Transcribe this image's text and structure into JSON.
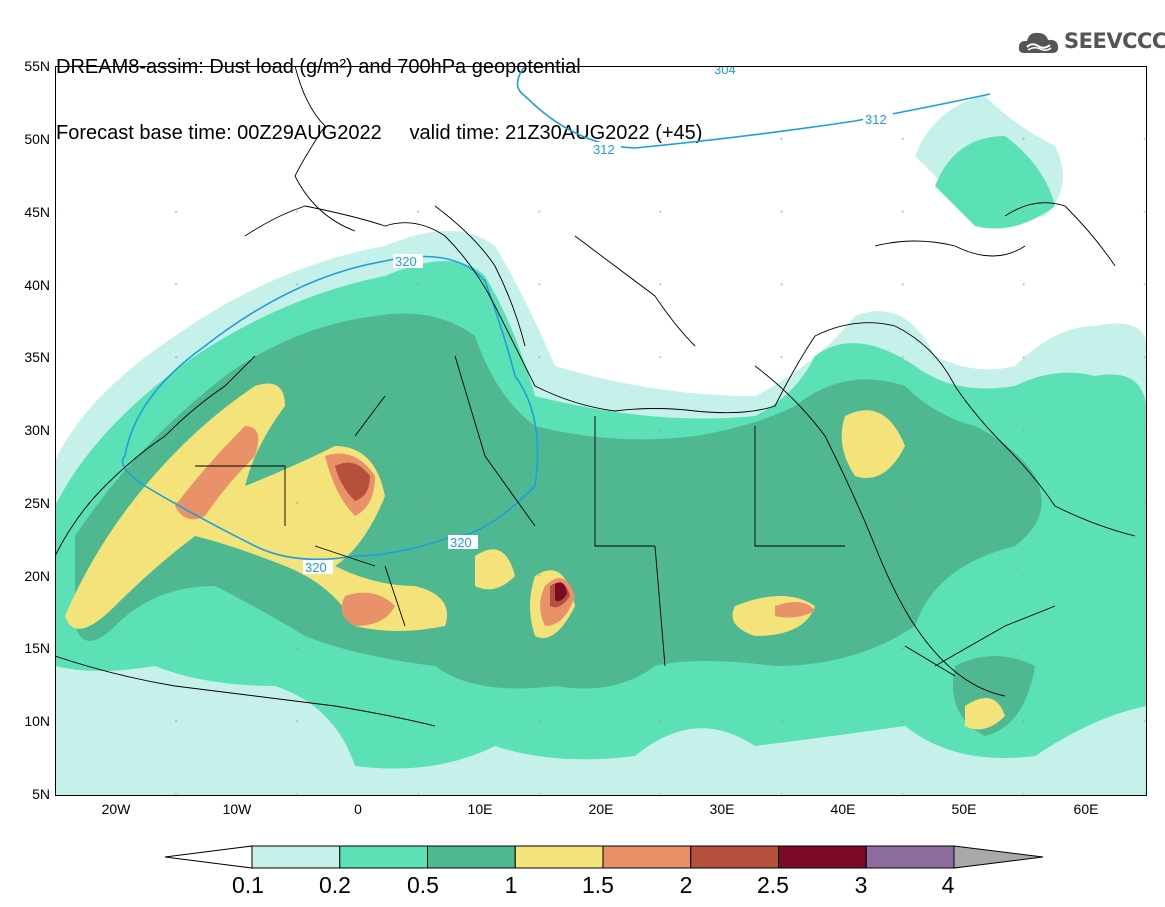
{
  "header": {
    "title_line1": "DREAM8-assim: Dust load (g/m²) and 700hPa geopotential",
    "title_line2": "Forecast base time: 00Z29AUG2022     valid time: 21Z30AUG2022 (+45)"
  },
  "logo": {
    "text": "SEEVCCC",
    "icon": "cloud-logo-icon"
  },
  "map": {
    "lat_labels": [
      "55N",
      "50N",
      "45N",
      "40N",
      "35N",
      "30N",
      "25N",
      "20N",
      "15N",
      "10N",
      "5N"
    ],
    "lon_labels": [
      "20W",
      "10W",
      "0",
      "10E",
      "20E",
      "30E",
      "40E",
      "50E",
      "60E"
    ],
    "lat_range": [
      5,
      55
    ],
    "lon_range": [
      -25,
      65
    ],
    "contour_labels": [
      "320",
      "320",
      "320",
      "312",
      "312",
      "304"
    ]
  },
  "legend": {
    "levels": [
      "0.1",
      "0.2",
      "0.5",
      "1",
      "1.5",
      "2",
      "2.5",
      "3",
      "4"
    ],
    "colors": [
      "#c6f1ea",
      "#5ce0b6",
      "#4fb891",
      "#f3e37a",
      "#e9926a",
      "#b5503d",
      "#7b0a27",
      "#8e6b9e",
      "#a9a9a9"
    ],
    "unit": "g/m²"
  }
}
